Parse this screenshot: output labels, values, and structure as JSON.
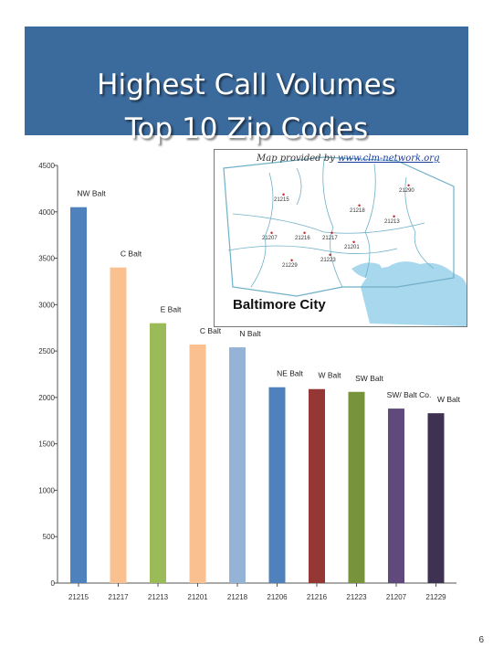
{
  "slide": {
    "title_line1": "Highest Call Volumes",
    "title_line2": "Top 10 Zip Codes",
    "page_number": "6"
  },
  "map": {
    "caption_prefix": "Map provided by",
    "caption_url": "www.clm-network.org",
    "city": "Baltimore City",
    "zips": [
      {
        "id": "z21290",
        "label": "21290"
      },
      {
        "id": "z21215",
        "label": "21215"
      },
      {
        "id": "z21218",
        "label": "21218"
      },
      {
        "id": "z21213",
        "label": "21213"
      },
      {
        "id": "z21207",
        "label": "21207"
      },
      {
        "id": "z21216",
        "label": "21216"
      },
      {
        "id": "z21217",
        "label": "21217"
      },
      {
        "id": "z21201",
        "label": "21201"
      },
      {
        "id": "z21229",
        "label": "21229"
      },
      {
        "id": "z21223",
        "label": "21223"
      }
    ],
    "water_color": "#a8d8ee",
    "boundary_color": "#6fb0c8"
  },
  "chart_data": {
    "type": "bar",
    "categories": [
      "21215",
      "21217",
      "21213",
      "21201",
      "21218",
      "21206",
      "21216",
      "21223",
      "21207",
      "21229"
    ],
    "values": [
      4050,
      3400,
      2800,
      2570,
      2540,
      2110,
      2090,
      2060,
      1880,
      1830
    ],
    "data_labels": [
      "NW Balt",
      "C Balt",
      "E Balt",
      "C Balt",
      "N Balt",
      "NE Balt",
      "W Balt",
      "SW Balt",
      "SW/ Balt Co.",
      "W Balt"
    ],
    "colors": [
      "#4f81bd",
      "#fac090",
      "#9bbb59",
      "#fac090",
      "#95b3d7",
      "#4f81bd",
      "#953735",
      "#77933c",
      "#604a7b",
      "#3f3151"
    ],
    "ylim": [
      0,
      4500
    ],
    "yticks": [
      0,
      500,
      1000,
      1500,
      2000,
      2500,
      3000,
      3500,
      4000,
      4500
    ],
    "grid": false,
    "title": "",
    "xlabel": "",
    "ylabel": ""
  }
}
